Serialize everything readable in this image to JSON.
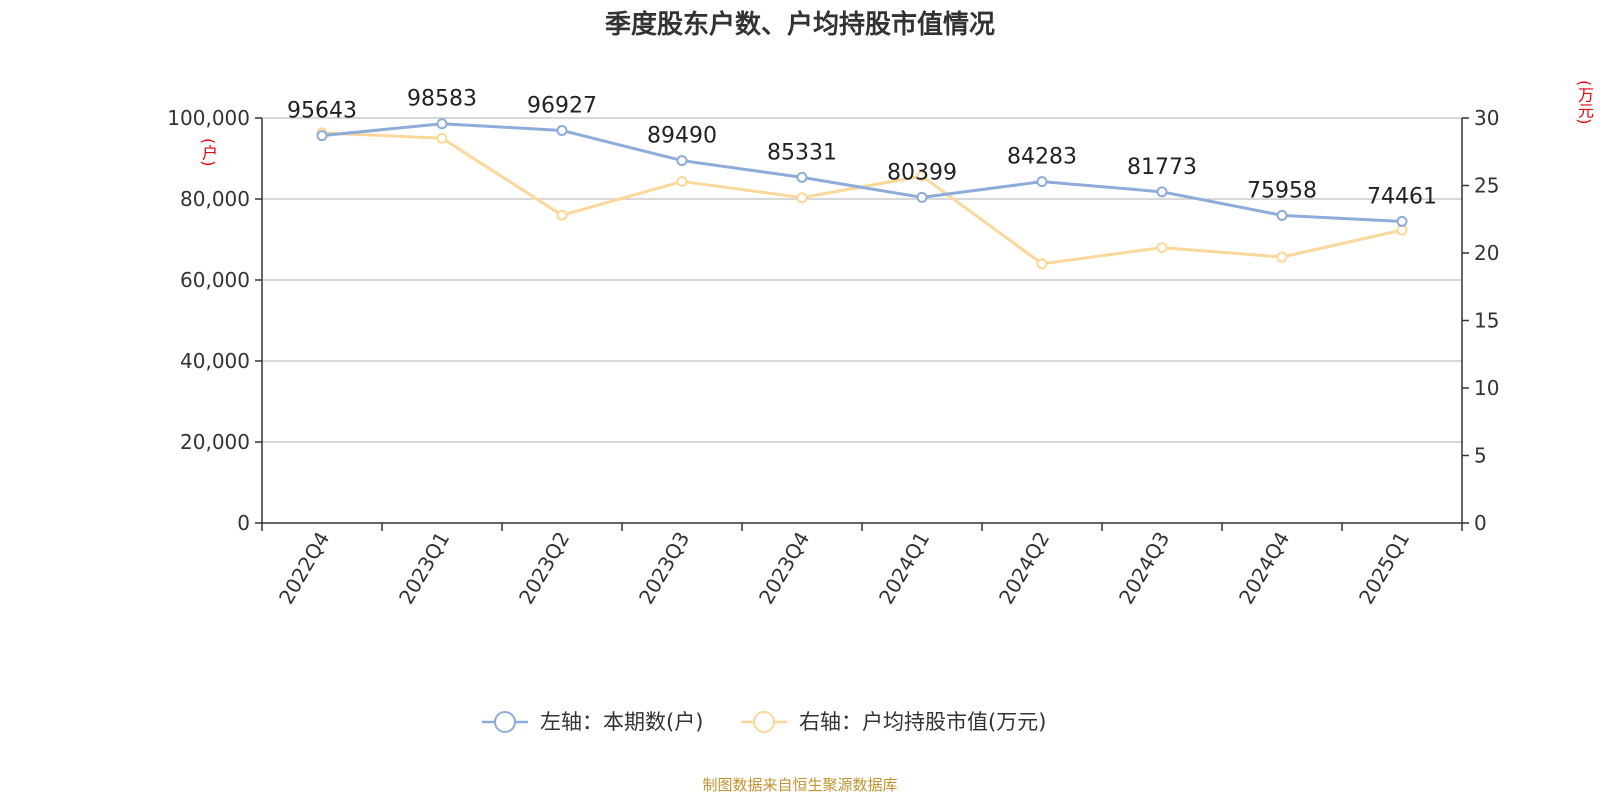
{
  "chart_data": {
    "type": "line",
    "title": "季度股东户数、户均持股市值情况",
    "categories": [
      "2022Q4",
      "2023Q1",
      "2023Q2",
      "2023Q3",
      "2023Q4",
      "2024Q1",
      "2024Q2",
      "2024Q3",
      "2024Q4",
      "2025Q1"
    ],
    "y_left": {
      "unit": "(户)",
      "range": [
        0,
        100000
      ],
      "ticks": [
        "0",
        "20,000",
        "40,000",
        "60,000",
        "80,000",
        "100,000"
      ]
    },
    "y_right": {
      "unit": "(万元)",
      "range": [
        0,
        30
      ],
      "ticks": [
        "0",
        "5",
        "10",
        "15",
        "20",
        "25",
        "30"
      ]
    },
    "grid": true,
    "legend_position": "bottom",
    "series": [
      {
        "name": "左轴：本期数(户)",
        "axis": "left",
        "color": "#8eacd9",
        "values": [
          95643,
          98583,
          96927,
          89490,
          85331,
          80399,
          84283,
          81773,
          75958,
          74461
        ],
        "labels": [
          "95643",
          "98583",
          "96927",
          "89490",
          "85331",
          "80399",
          "84283",
          "81773",
          "75958",
          "74461"
        ]
      },
      {
        "name": "右轴：户均持股市值(万元)",
        "axis": "right",
        "color": "#fbd89a",
        "values": [
          28.9,
          28.5,
          22.8,
          25.3,
          24.1,
          25.7,
          19.2,
          20.4,
          19.7,
          21.7
        ]
      }
    ]
  },
  "source": "制图数据来自恒生聚源数据库"
}
